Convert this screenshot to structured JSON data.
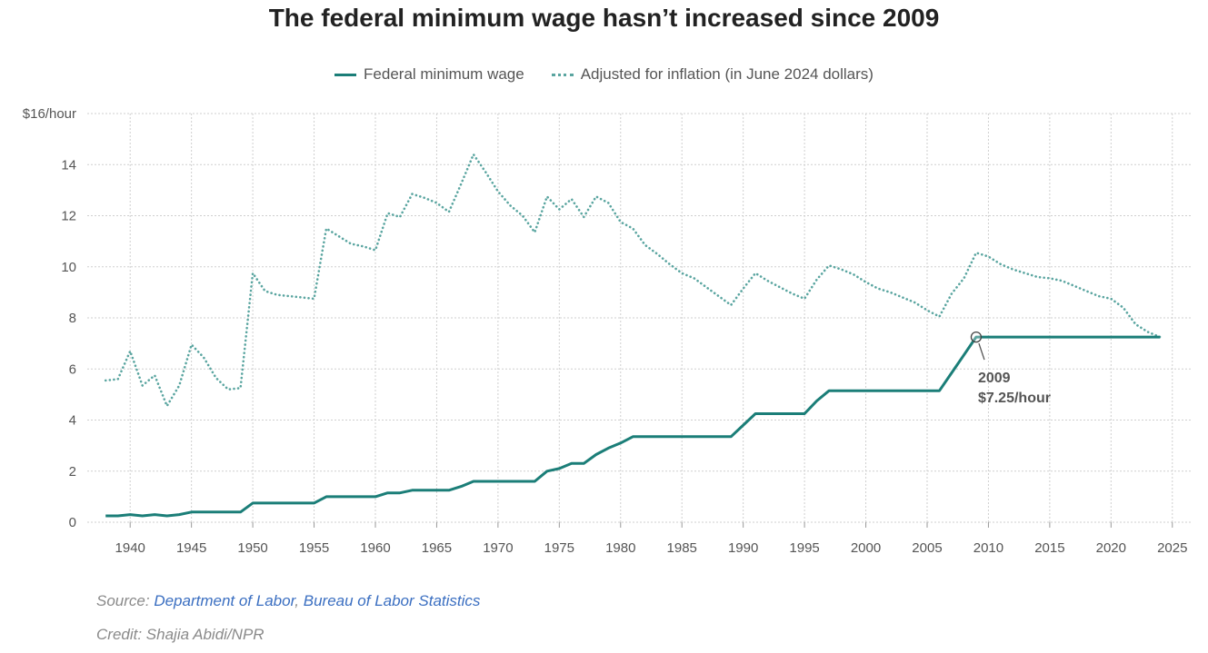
{
  "chart_data": {
    "type": "line",
    "title": "The federal minimum wage hasn’t increased since 2009",
    "xlim": [
      1936.5,
      2026.5
    ],
    "ylim": [
      0,
      16
    ],
    "x_ticks": [
      1940,
      1945,
      1950,
      1955,
      1960,
      1965,
      1970,
      1975,
      1980,
      1985,
      1990,
      1995,
      2000,
      2005,
      2010,
      2015,
      2020,
      2025
    ],
    "y_ticks": [
      0,
      2,
      4,
      6,
      8,
      10,
      12,
      14,
      16
    ],
    "y_tick_labels": [
      "0",
      "2",
      "4",
      "6",
      "8",
      "10",
      "12",
      "14",
      "$16/hour"
    ],
    "grid": true,
    "legend_position": "top-center",
    "colors": {
      "nominal": "#1b7e78",
      "adjusted": "#5aa5a0",
      "grid": "#cfcfcf",
      "link": "#3b6fc1"
    },
    "series": [
      {
        "name": "Federal minimum wage",
        "style": "solid",
        "points": [
          [
            1938,
            0.25
          ],
          [
            1939,
            0.25
          ],
          [
            1940,
            0.3
          ],
          [
            1941,
            0.25
          ],
          [
            1942,
            0.3
          ],
          [
            1943,
            0.25
          ],
          [
            1944,
            0.3
          ],
          [
            1945,
            0.4
          ],
          [
            1946,
            0.4
          ],
          [
            1947,
            0.4
          ],
          [
            1948,
            0.4
          ],
          [
            1949,
            0.4
          ],
          [
            1950,
            0.75
          ],
          [
            1951,
            0.75
          ],
          [
            1952,
            0.75
          ],
          [
            1953,
            0.75
          ],
          [
            1954,
            0.75
          ],
          [
            1955,
            0.75
          ],
          [
            1956,
            1.0
          ],
          [
            1957,
            1.0
          ],
          [
            1958,
            1.0
          ],
          [
            1959,
            1.0
          ],
          [
            1960,
            1.0
          ],
          [
            1961,
            1.15
          ],
          [
            1962,
            1.15
          ],
          [
            1963,
            1.25
          ],
          [
            1964,
            1.25
          ],
          [
            1965,
            1.25
          ],
          [
            1966,
            1.25
          ],
          [
            1967,
            1.4
          ],
          [
            1968,
            1.6
          ],
          [
            1969,
            1.6
          ],
          [
            1970,
            1.6
          ],
          [
            1971,
            1.6
          ],
          [
            1972,
            1.6
          ],
          [
            1973,
            1.6
          ],
          [
            1974,
            2.0
          ],
          [
            1975,
            2.1
          ],
          [
            1976,
            2.3
          ],
          [
            1977,
            2.3
          ],
          [
            1978,
            2.65
          ],
          [
            1979,
            2.9
          ],
          [
            1980,
            3.1
          ],
          [
            1981,
            3.35
          ],
          [
            1982,
            3.35
          ],
          [
            1983,
            3.35
          ],
          [
            1984,
            3.35
          ],
          [
            1985,
            3.35
          ],
          [
            1986,
            3.35
          ],
          [
            1987,
            3.35
          ],
          [
            1988,
            3.35
          ],
          [
            1989,
            3.35
          ],
          [
            1990,
            3.8
          ],
          [
            1991,
            4.25
          ],
          [
            1992,
            4.25
          ],
          [
            1993,
            4.25
          ],
          [
            1994,
            4.25
          ],
          [
            1995,
            4.25
          ],
          [
            1996,
            4.75
          ],
          [
            1997,
            5.15
          ],
          [
            1998,
            5.15
          ],
          [
            1999,
            5.15
          ],
          [
            2000,
            5.15
          ],
          [
            2001,
            5.15
          ],
          [
            2002,
            5.15
          ],
          [
            2003,
            5.15
          ],
          [
            2004,
            5.15
          ],
          [
            2005,
            5.15
          ],
          [
            2006,
            5.15
          ],
          [
            2007,
            5.85
          ],
          [
            2008,
            6.55
          ],
          [
            2009,
            7.25
          ],
          [
            2010,
            7.25
          ],
          [
            2011,
            7.25
          ],
          [
            2012,
            7.25
          ],
          [
            2013,
            7.25
          ],
          [
            2014,
            7.25
          ],
          [
            2015,
            7.25
          ],
          [
            2016,
            7.25
          ],
          [
            2017,
            7.25
          ],
          [
            2018,
            7.25
          ],
          [
            2019,
            7.25
          ],
          [
            2020,
            7.25
          ],
          [
            2021,
            7.25
          ],
          [
            2022,
            7.25
          ],
          [
            2023,
            7.25
          ],
          [
            2024,
            7.25
          ]
        ]
      },
      {
        "name": "Adjusted for inflation (in June 2024 dollars)",
        "style": "dotted",
        "points": [
          [
            1938,
            5.55
          ],
          [
            1939,
            5.6
          ],
          [
            1940,
            6.7
          ],
          [
            1941,
            5.35
          ],
          [
            1942,
            5.75
          ],
          [
            1943,
            4.55
          ],
          [
            1944,
            5.35
          ],
          [
            1945,
            6.95
          ],
          [
            1946,
            6.45
          ],
          [
            1947,
            5.65
          ],
          [
            1948,
            5.2
          ],
          [
            1949,
            5.25
          ],
          [
            1950,
            9.75
          ],
          [
            1951,
            9.05
          ],
          [
            1952,
            8.9
          ],
          [
            1953,
            8.85
          ],
          [
            1954,
            8.8
          ],
          [
            1955,
            8.75
          ],
          [
            1956,
            11.5
          ],
          [
            1957,
            11.2
          ],
          [
            1958,
            10.9
          ],
          [
            1959,
            10.8
          ],
          [
            1960,
            10.65
          ],
          [
            1961,
            12.1
          ],
          [
            1962,
            11.95
          ],
          [
            1963,
            12.85
          ],
          [
            1964,
            12.7
          ],
          [
            1965,
            12.5
          ],
          [
            1966,
            12.15
          ],
          [
            1967,
            13.25
          ],
          [
            1968,
            14.4
          ],
          [
            1969,
            13.7
          ],
          [
            1970,
            12.95
          ],
          [
            1971,
            12.4
          ],
          [
            1972,
            12.0
          ],
          [
            1973,
            11.35
          ],
          [
            1974,
            12.75
          ],
          [
            1975,
            12.25
          ],
          [
            1976,
            12.65
          ],
          [
            1977,
            11.95
          ],
          [
            1978,
            12.75
          ],
          [
            1979,
            12.5
          ],
          [
            1980,
            11.75
          ],
          [
            1981,
            11.5
          ],
          [
            1982,
            10.85
          ],
          [
            1983,
            10.5
          ],
          [
            1984,
            10.1
          ],
          [
            1985,
            9.75
          ],
          [
            1986,
            9.55
          ],
          [
            1987,
            9.2
          ],
          [
            1988,
            8.85
          ],
          [
            1989,
            8.5
          ],
          [
            1990,
            9.15
          ],
          [
            1991,
            9.75
          ],
          [
            1992,
            9.45
          ],
          [
            1993,
            9.2
          ],
          [
            1994,
            8.95
          ],
          [
            1995,
            8.75
          ],
          [
            1996,
            9.5
          ],
          [
            1997,
            10.05
          ],
          [
            1998,
            9.9
          ],
          [
            1999,
            9.7
          ],
          [
            2000,
            9.4
          ],
          [
            2001,
            9.15
          ],
          [
            2002,
            9.0
          ],
          [
            2003,
            8.8
          ],
          [
            2004,
            8.6
          ],
          [
            2005,
            8.3
          ],
          [
            2006,
            8.05
          ],
          [
            2007,
            8.95
          ],
          [
            2008,
            9.55
          ],
          [
            2009,
            10.55
          ],
          [
            2010,
            10.4
          ],
          [
            2011,
            10.1
          ],
          [
            2012,
            9.9
          ],
          [
            2013,
            9.75
          ],
          [
            2014,
            9.6
          ],
          [
            2015,
            9.55
          ],
          [
            2016,
            9.45
          ],
          [
            2017,
            9.25
          ],
          [
            2018,
            9.05
          ],
          [
            2019,
            8.85
          ],
          [
            2020,
            8.75
          ],
          [
            2021,
            8.4
          ],
          [
            2022,
            7.75
          ],
          [
            2023,
            7.45
          ],
          [
            2024,
            7.25
          ]
        ]
      }
    ],
    "annotation": {
      "x": 2009,
      "y": 7.25,
      "line1": "2009",
      "line2": "$7.25/hour"
    }
  },
  "legend": {
    "nominal_label": "Federal minimum wage",
    "adjusted_label": "Adjusted for inflation (in June 2024 dollars)"
  },
  "footer": {
    "source_prefix": "Source: ",
    "source_link1": "Department of Labor",
    "source_sep": ", ",
    "source_link2": "Bureau of Labor Statistics",
    "credit": "Credit: Shajia Abidi/NPR"
  }
}
